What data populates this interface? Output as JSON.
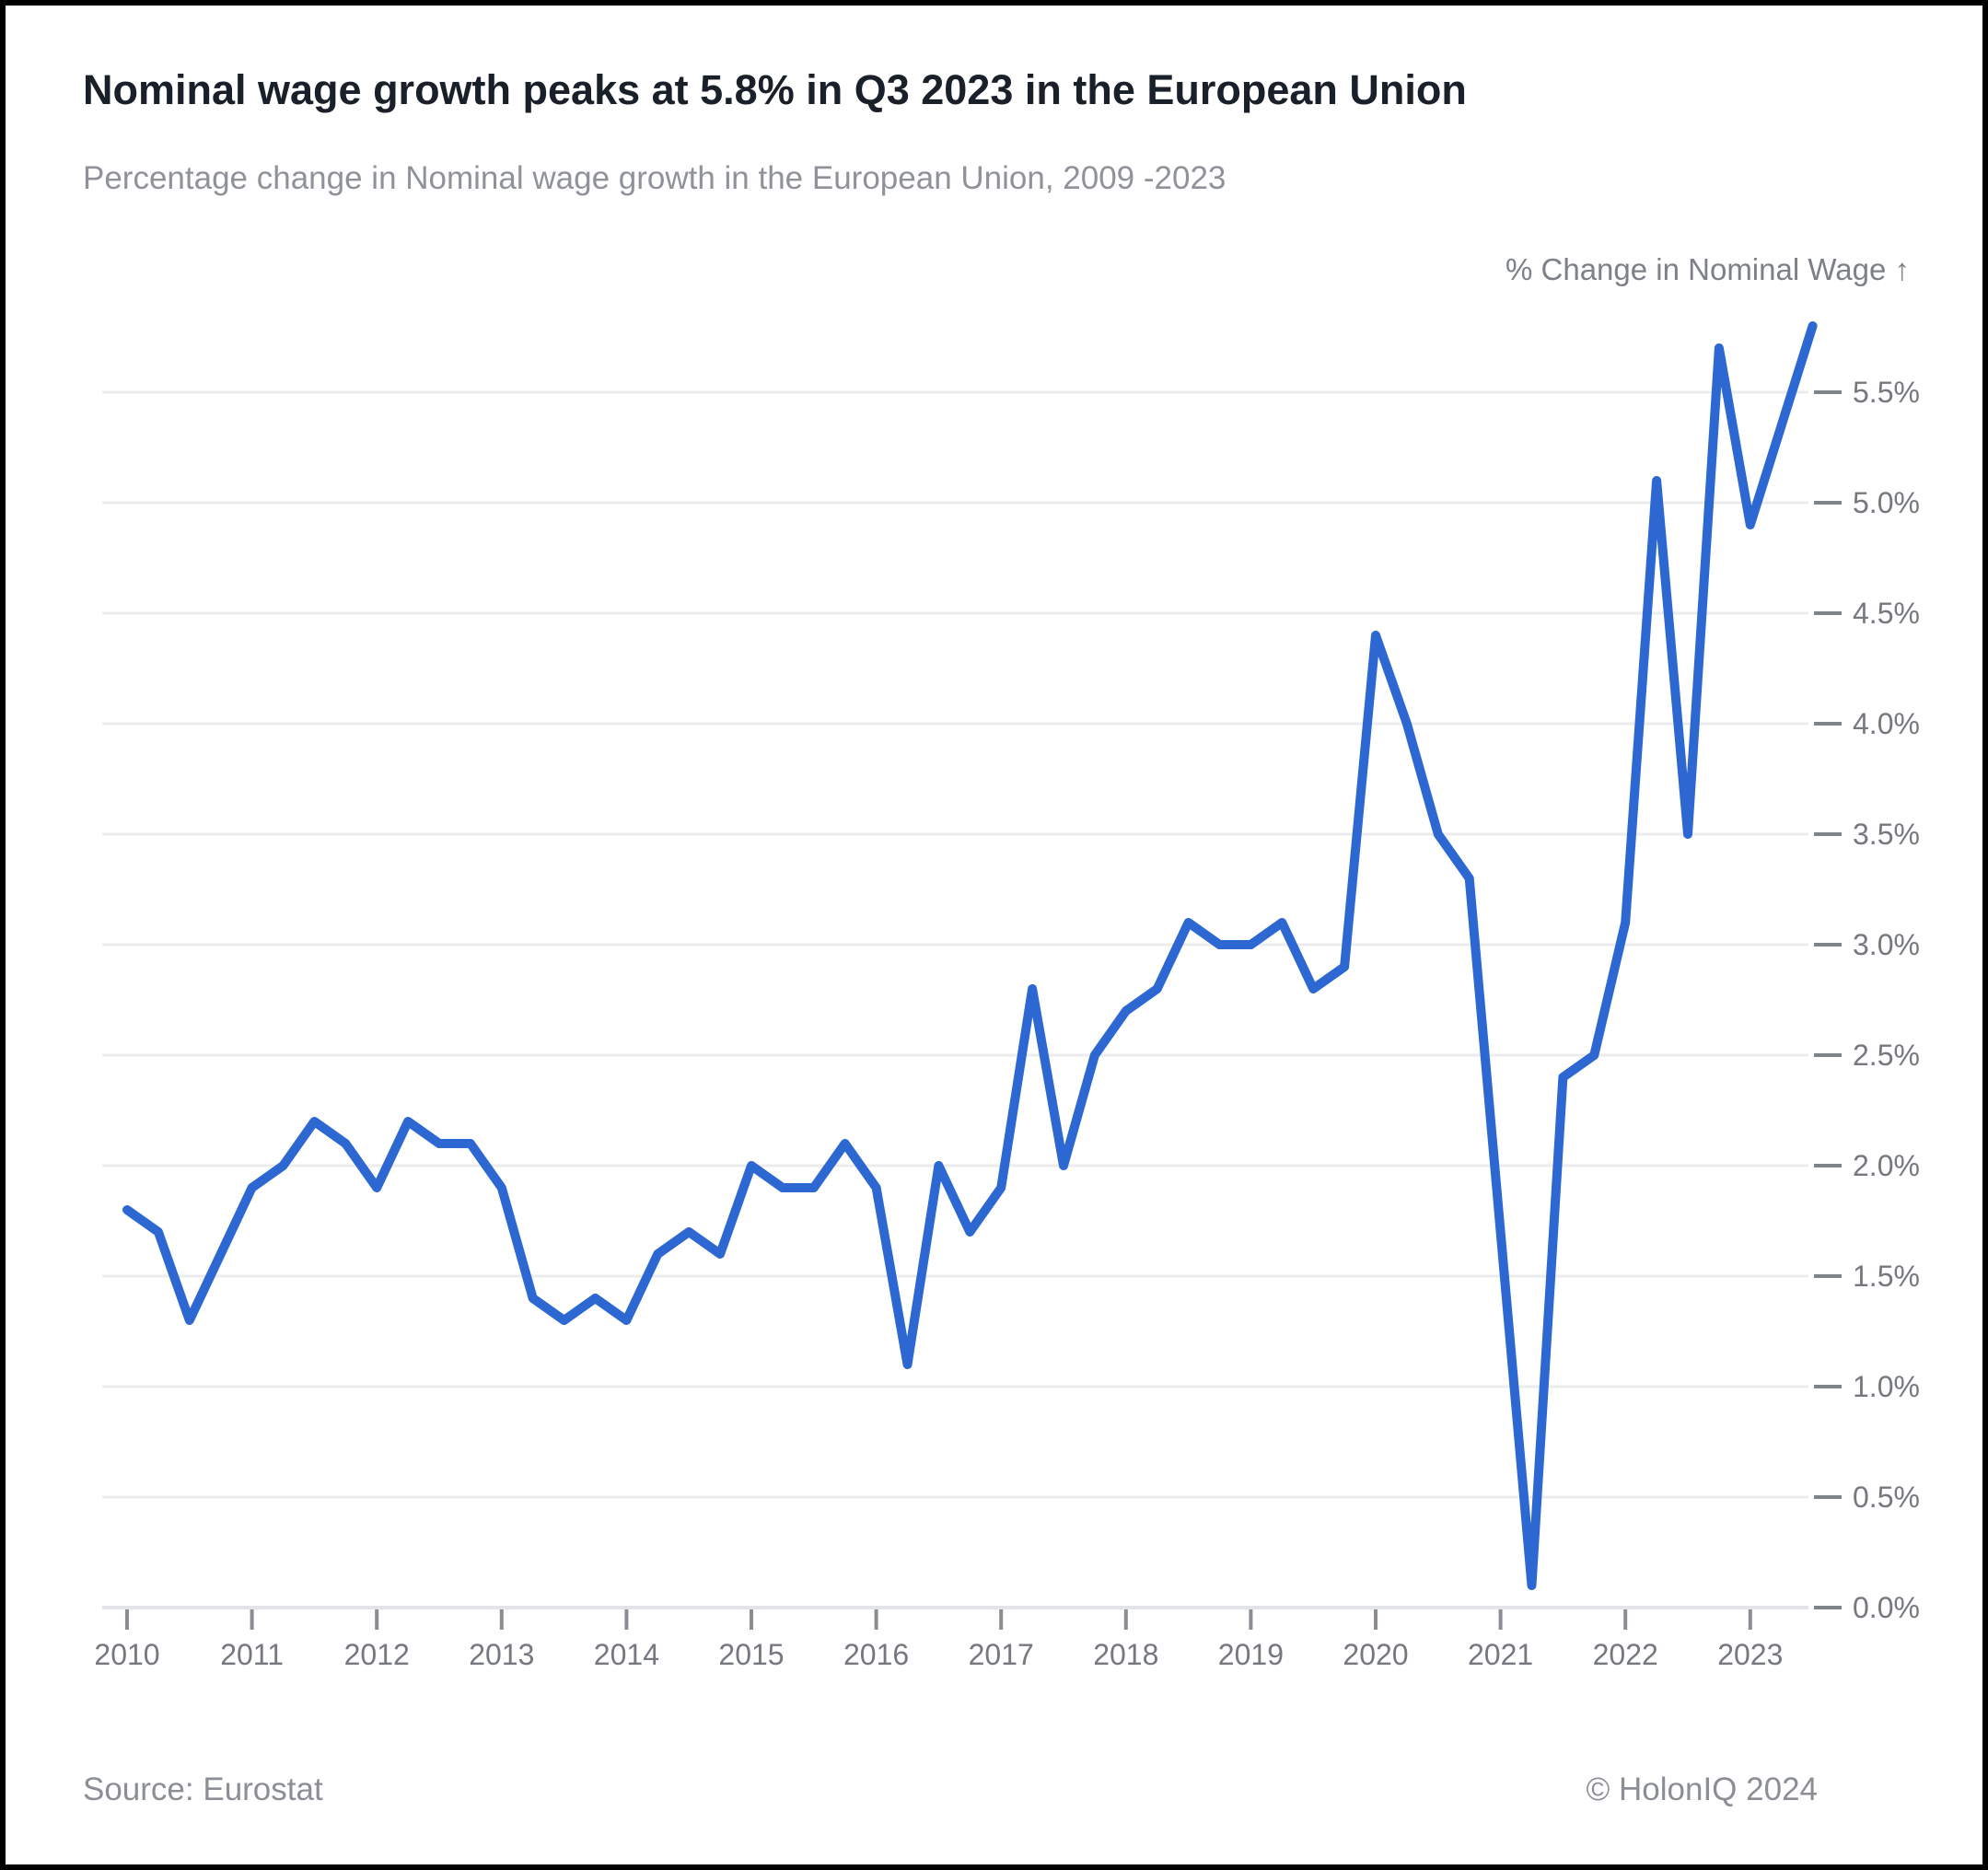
{
  "header": {
    "title": "Nominal wage growth peaks at 5.8% in Q3 2023 in the European Union",
    "subtitle": "Percentage change in Nominal wage growth in the European Union, 2009 -2023"
  },
  "chart_data": {
    "type": "line",
    "title": "Nominal wage growth peaks at 5.8% in Q3 2023 in the European Union",
    "subtitle": "Percentage change in Nominal wage growth in the European Union, 2009 -2023",
    "axis_title": "% Change in Nominal Wage ↑",
    "legend_position": "none",
    "grid": true,
    "ylim": [
      0.0,
      5.8
    ],
    "y_gridline_step": 0.5,
    "y_tick_labels": [
      "0.0%",
      "0.5%",
      "1.0%",
      "1.5%",
      "2.0%",
      "2.5%",
      "3.0%",
      "3.5%",
      "4.0%",
      "4.5%",
      "5.0%",
      "5.5%"
    ],
    "x_tick_labels": [
      "2010",
      "2011",
      "2012",
      "2013",
      "2014",
      "2015",
      "2016",
      "2017",
      "2018",
      "2019",
      "2020",
      "2021",
      "2022",
      "2023"
    ],
    "categories": [
      "2010 Q1",
      "2010 Q2",
      "2010 Q3",
      "2010 Q4",
      "2011 Q1",
      "2011 Q2",
      "2011 Q3",
      "2011 Q4",
      "2012 Q1",
      "2012 Q2",
      "2012 Q3",
      "2012 Q4",
      "2013 Q1",
      "2013 Q2",
      "2013 Q3",
      "2013 Q4",
      "2014 Q1",
      "2014 Q2",
      "2014 Q3",
      "2014 Q4",
      "2015 Q1",
      "2015 Q2",
      "2015 Q3",
      "2015 Q4",
      "2016 Q1",
      "2016 Q2",
      "2016 Q3",
      "2016 Q4",
      "2017 Q1",
      "2017 Q2",
      "2017 Q3",
      "2017 Q4",
      "2018 Q1",
      "2018 Q2",
      "2018 Q3",
      "2018 Q4",
      "2019 Q1",
      "2019 Q2",
      "2019 Q3",
      "2019 Q4",
      "2020 Q1",
      "2020 Q2",
      "2020 Q3",
      "2020 Q4",
      "2021 Q1",
      "2021 Q2",
      "2021 Q3",
      "2021 Q4",
      "2022 Q1",
      "2022 Q2",
      "2022 Q3",
      "2022 Q4",
      "2023 Q1",
      "2023 Q2",
      "2023 Q3"
    ],
    "series": [
      {
        "name": "% Change in Nominal Wage (EU)",
        "values": [
          1.8,
          1.7,
          1.3,
          1.6,
          1.9,
          2.0,
          2.2,
          2.1,
          1.9,
          2.2,
          2.1,
          2.1,
          1.9,
          1.4,
          1.3,
          1.4,
          1.3,
          1.6,
          1.7,
          1.6,
          2.0,
          1.9,
          1.9,
          2.1,
          1.9,
          1.1,
          2.0,
          1.7,
          1.9,
          2.8,
          2.0,
          2.5,
          2.7,
          2.8,
          3.1,
          3.0,
          3.0,
          3.1,
          2.8,
          2.9,
          4.4,
          4.0,
          3.5,
          3.3,
          1.7,
          0.1,
          2.4,
          2.5,
          3.1,
          5.1,
          3.5,
          5.7,
          4.9,
          5.35,
          5.8
        ]
      }
    ],
    "annotated_peak": "5.8% in Q3 2023",
    "line_color": "#2d68d2"
  },
  "colors": {
    "line": "#2d68d2",
    "title_text": "#1a202a",
    "muted_text": "#8f9399",
    "tick_text": "#75787e",
    "gridline": "#ececef",
    "baseline": "#e3e4e7",
    "tick_mark": "#8a8d92",
    "y_dash": "#7f838a",
    "frame": "#000000",
    "background": "#ffffff"
  },
  "footer": {
    "source": "Source: Eurostat",
    "copyright": "© HolonIQ 2024"
  }
}
